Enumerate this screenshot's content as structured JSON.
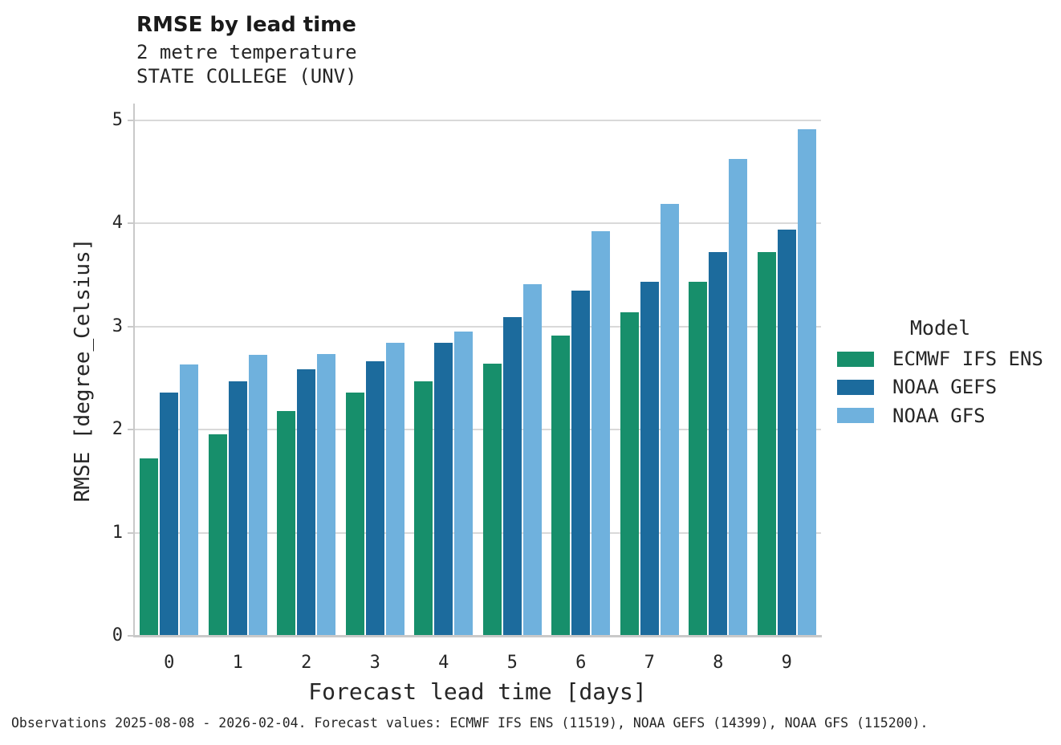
{
  "title": "RMSE by lead time",
  "subtitle_line1": "2 metre temperature",
  "subtitle_line2": "STATE COLLEGE (UNV)",
  "caption": "Observations 2025-08-08 - 2026-02-04. Forecast values: ECMWF IFS ENS (11519), NOAA GEFS (14399), NOAA GFS (115200).",
  "legend": {
    "title": "Model",
    "position": "right"
  },
  "chart_data": {
    "type": "bar",
    "title": "RMSE by lead time",
    "subtitle": "2 metre temperature STATE COLLEGE (UNV)",
    "categories": [
      "0",
      "1",
      "2",
      "3",
      "4",
      "5",
      "6",
      "7",
      "8",
      "9"
    ],
    "series": [
      {
        "name": "ECMWF IFS ENS",
        "color": "#178f6b",
        "values": [
          1.72,
          1.95,
          2.18,
          2.36,
          2.47,
          2.64,
          2.91,
          3.14,
          3.43,
          3.72
        ]
      },
      {
        "name": "NOAA GEFS",
        "color": "#1c6b9d",
        "values": [
          2.36,
          2.47,
          2.58,
          2.66,
          2.84,
          3.09,
          3.35,
          3.43,
          3.72,
          3.94
        ]
      },
      {
        "name": "NOAA GFS",
        "color": "#6fb1dd",
        "values": [
          2.63,
          2.72,
          2.73,
          2.84,
          2.95,
          3.41,
          3.92,
          4.19,
          4.62,
          4.91
        ]
      }
    ],
    "xlabel": "Forecast lead time [days]",
    "ylabel": "RMSE [degree_Celsius]",
    "ylim": [
      0,
      5
    ],
    "yticks": [
      0,
      1,
      2,
      3,
      4,
      5
    ],
    "grid": true,
    "legend_title": "Model",
    "legend_position": "right"
  }
}
